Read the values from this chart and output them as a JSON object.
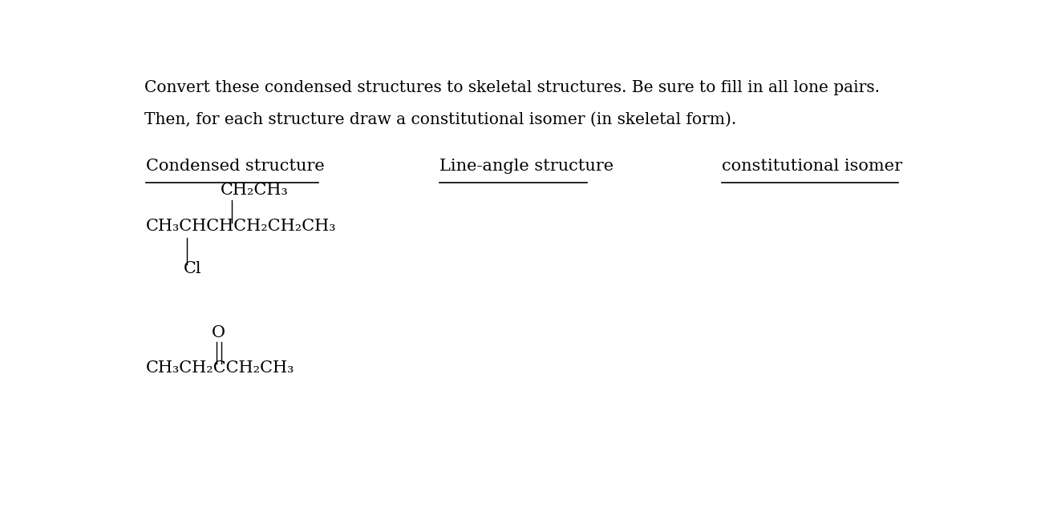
{
  "bg_color": "#ffffff",
  "fig_width": 13.18,
  "fig_height": 6.48,
  "dpi": 100,
  "header_line1": "Convert these condensed structures to skeletal structures. Be sure to fill in all lone pairs.",
  "header_line2": "Then, for each structure draw a constitutional isomer (in skeletal form).",
  "col1_header": "Condensed structure",
  "col2_header": "Line-angle structure",
  "col3_header": "constitutional isomer",
  "header_fontsize": 14.5,
  "col_header_fontsize": 15,
  "formula_fontsize": 15,
  "formula1_main": "CH₃CHCHCH₂CH₂CH₃",
  "formula1_top": "CH₂CH₃",
  "formula1_bottom": "Cl",
  "formula2_main": "CH₃CH₂CCH₂CH₃",
  "formula2_O": "O"
}
